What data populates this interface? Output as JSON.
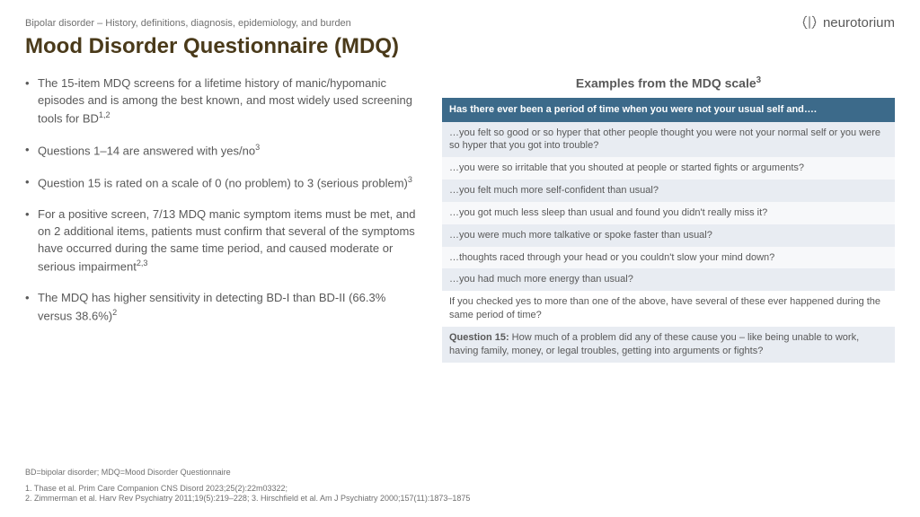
{
  "brand": "neurotorium",
  "breadcrumb": "Bipolar disorder – History, definitions, diagnosis, epidemiology, and burden",
  "title": "Mood Disorder Questionnaire (MDQ)",
  "bullets": [
    {
      "text": "The 15-item MDQ screens for a lifetime history of manic/hypomanic episodes and is among the best known, and most widely used screening tools for BD",
      "sup": "1,2"
    },
    {
      "text": "Questions 1–14 are answered with yes/no",
      "sup": "3"
    },
    {
      "text": "Question 15 is rated on a scale of 0 (no problem) to 3 (serious problem)",
      "sup": "3"
    },
    {
      "text": "For a positive screen, 7/13 MDQ manic symptom items must be met, and on 2 additional items, patients must confirm that several of the symptoms have occurred during the same time period, and caused moderate or serious impairment",
      "sup": "2,3"
    },
    {
      "text": "The MDQ has higher sensitivity in detecting BD-I than BD-II (66.3% versus 38.6%)",
      "sup": "2"
    }
  ],
  "examples_title_pre": "Examples from the MDQ scale",
  "examples_title_sup": "3",
  "mdq_header": "Has there ever been a period of time when you were not your usual self and….",
  "mdq_rows": [
    "…you felt so good or so hyper that other people thought you were not your normal self or you were so hyper that you got into trouble?",
    "…you were so irritable that you shouted at people or started fights or arguments?",
    "…you felt much more self-confident than usual?",
    "…you got much less sleep than usual and found you didn't really miss it?",
    "…you were much more talkative or spoke faster than usual?",
    "…thoughts raced through your head or you couldn't slow your mind down?",
    "…you had much more energy than usual?"
  ],
  "mdq_follow": "If you checked yes to more than one of the above, have several of these ever happened during the same period of time?",
  "mdq_q15_label": "Question 15:",
  "mdq_q15_text": " How much of a problem did any of these cause you – like being unable to work, having family, money, or legal troubles, getting into arguments or fights?",
  "abbr": "BD=bipolar disorder; MDQ=Mood Disorder Questionnaire",
  "refs": [
    "1. Thase et al. Prim Care Companion CNS Disord 2023;25(2):22m03322;",
    "2. Zimmerman et al. Harv Rev Psychiatry 2011;19(5):219–228;  3. Hirschfield et al. Am J Psychiatry 2000;157(11):1873–1875"
  ],
  "colors": {
    "title": "#4a3a1a",
    "body": "#595959",
    "header_bg": "#3c6a8a",
    "row_a": "#e8ecf2",
    "row_b": "#f7f8fa"
  }
}
